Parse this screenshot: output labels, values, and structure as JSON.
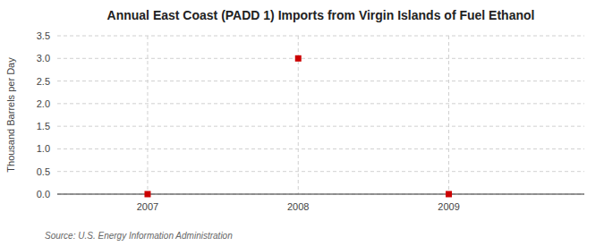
{
  "chart_data": {
    "type": "scatter",
    "title": "Annual East Coast (PADD 1) Imports from Virgin Islands of Fuel Ethanol",
    "y_label": "Thousand Barrels per Day",
    "annotations": [
      "Source: U.S. Energy Information Administration"
    ],
    "x": [
      2007,
      2008,
      2009
    ],
    "values": [
      0.0,
      3.0,
      0.0
    ],
    "color": "#cc0000",
    "marker": "square",
    "xlim": [
      2006.4,
      2009.9
    ],
    "ylim": [
      0.0,
      3.5
    ],
    "xticks": [
      2007,
      2008,
      2009
    ],
    "yticks": [
      {
        "value": 0.0,
        "label": "0.0"
      },
      0.5,
      {
        "value": 1.0,
        "label": "1.0"
      },
      1.5,
      {
        "value": 2.0,
        "label": "2.0"
      },
      2.5,
      {
        "value": 3.0,
        "label": "3.0"
      },
      3.5
    ],
    "grid": true
  }
}
